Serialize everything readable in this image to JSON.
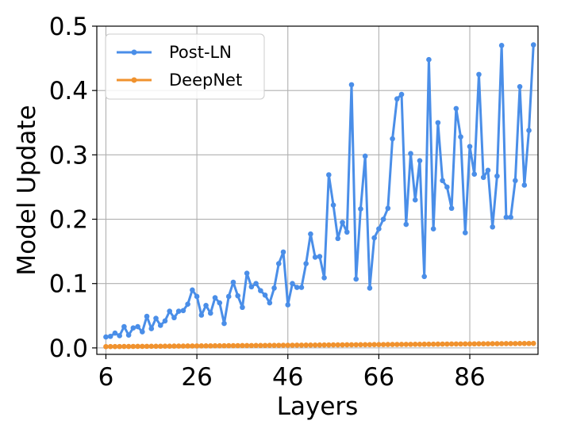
{
  "chart_data": {
    "type": "line",
    "title": "",
    "xlabel": "Layers",
    "ylabel": "Model Update",
    "xlim": [
      4,
      101
    ],
    "ylim": [
      -0.01,
      0.5
    ],
    "xticks": [
      "6",
      "26",
      "46",
      "66",
      "86"
    ],
    "yticks": [
      "0.0",
      "0.1",
      "0.2",
      "0.3",
      "0.4",
      "0.5"
    ],
    "grid": true,
    "legend_position": "top-left",
    "x": [
      6,
      7,
      8,
      9,
      10,
      11,
      12,
      13,
      14,
      15,
      16,
      17,
      18,
      19,
      20,
      21,
      22,
      23,
      24,
      25,
      26,
      27,
      28,
      29,
      30,
      31,
      32,
      33,
      34,
      35,
      36,
      37,
      38,
      39,
      40,
      41,
      42,
      43,
      44,
      45,
      46,
      47,
      48,
      49,
      50,
      51,
      52,
      53,
      54,
      55,
      56,
      57,
      58,
      59,
      60,
      61,
      62,
      63,
      64,
      65,
      66,
      67,
      68,
      69,
      70,
      71,
      72,
      73,
      74,
      75,
      76,
      77,
      78,
      79,
      80,
      81,
      82,
      83,
      84,
      85,
      86,
      87,
      88,
      89,
      90,
      91,
      92,
      93,
      94,
      95,
      96,
      97,
      98,
      99,
      100
    ],
    "series": [
      {
        "name": "Post-LN",
        "color": "#4a8ee8",
        "values": [
          0.017,
          0.018,
          0.023,
          0.019,
          0.033,
          0.02,
          0.031,
          0.033,
          0.025,
          0.049,
          0.03,
          0.046,
          0.035,
          0.042,
          0.057,
          0.047,
          0.057,
          0.058,
          0.068,
          0.09,
          0.08,
          0.051,
          0.066,
          0.054,
          0.078,
          0.07,
          0.038,
          0.08,
          0.102,
          0.081,
          0.063,
          0.116,
          0.095,
          0.1,
          0.089,
          0.082,
          0.07,
          0.093,
          0.131,
          0.149,
          0.067,
          0.1,
          0.094,
          0.094,
          0.131,
          0.177,
          0.141,
          0.142,
          0.109,
          0.269,
          0.222,
          0.17,
          0.195,
          0.18,
          0.409,
          0.107,
          0.216,
          0.298,
          0.093,
          0.171,
          0.185,
          0.2,
          0.217,
          0.325,
          0.387,
          0.394,
          0.192,
          0.302,
          0.23,
          0.291,
          0.111,
          0.448,
          0.185,
          0.35,
          0.26,
          0.25,
          0.217,
          0.372,
          0.328,
          0.179,
          0.313,
          0.27,
          0.425,
          0.265,
          0.276,
          0.188,
          0.267,
          0.47,
          0.203,
          0.203,
          0.26,
          0.406,
          0.253,
          0.338,
          0.471
        ]
      },
      {
        "name": "DeepNet",
        "color": "#f0922e",
        "start_value": 0.002,
        "end_value": 0.007
      }
    ]
  }
}
